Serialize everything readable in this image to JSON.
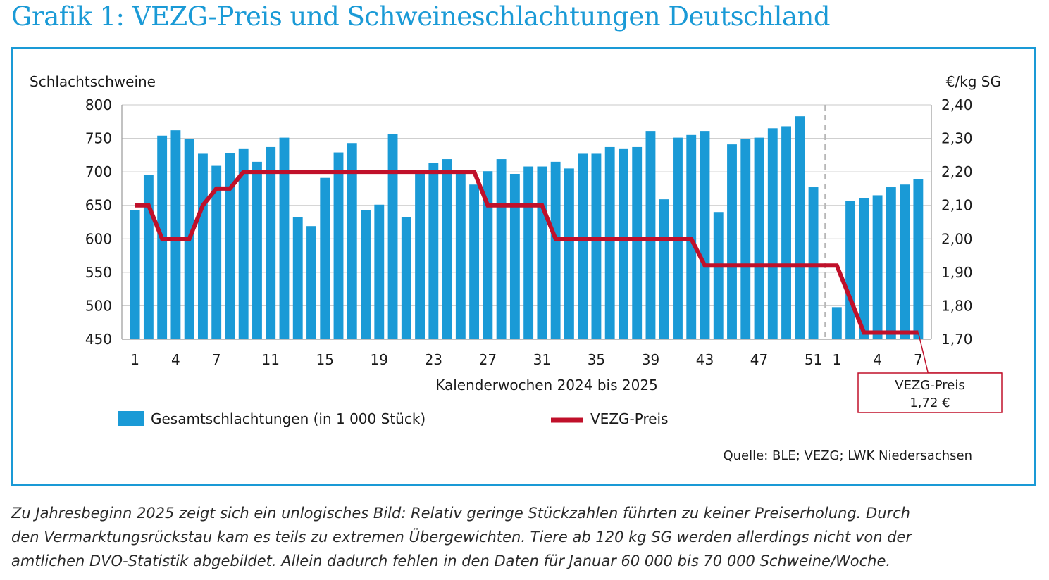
{
  "title": "Grafik 1: VEZG-Preis und Schweineschlachtungen Deutschland",
  "caption": [
    "Zu Jahresbeginn 2025 zeigt sich ein unlogisches Bild: Relativ geringe Stückzahlen führten zu keiner Preiserholung. Durch",
    "den Vermarktungsrückstau kam es teils zu extremen Übergewichten. Tiere ab 120 kg SG werden allerdings nicht von der",
    "amtlichen DVO-Statistik abgebildet. Allein dadurch fehlen in den Daten für Januar 60 000 bis 70 000 Schweine/Woche."
  ],
  "source": "Quelle: BLE; VEZG; LWK Niedersachsen",
  "colors": {
    "bars": "#1a9ad6",
    "line": "#c0102a",
    "title": "#1a9ad6",
    "frame": "#1a9ad6",
    "grid": "#c8c8c8",
    "annotation_border": "#c0102a"
  },
  "chart_data": {
    "type": "bar+line",
    "xlabel": "Kalenderwochen 2024 bis 2025",
    "ylabel_left": "Schlachtschweine",
    "ylabel_right": "€/kg SG",
    "ylim_left": [
      450,
      800
    ],
    "ylim_right": [
      1.7,
      2.4
    ],
    "yticks_left": [
      "800",
      "750",
      "700",
      "650",
      "600",
      "550",
      "500",
      "450"
    ],
    "yticks_right": [
      "2,40",
      "2,30",
      "2,20",
      "2,10",
      "2,00",
      "1,90",
      "1,80",
      "1,70"
    ],
    "categories": [
      "2024-KW1",
      "2024-KW2",
      "2024-KW3",
      "2024-KW4",
      "2024-KW5",
      "2024-KW6",
      "2024-KW7",
      "2024-KW8",
      "2024-KW9",
      "2024-KW10",
      "2024-KW11",
      "2024-KW12",
      "2024-KW13",
      "2024-KW14",
      "2024-KW15",
      "2024-KW16",
      "2024-KW17",
      "2024-KW18",
      "2024-KW19",
      "2024-KW20",
      "2024-KW21",
      "2024-KW22",
      "2024-KW23",
      "2024-KW24",
      "2024-KW25",
      "2024-KW26",
      "2024-KW27",
      "2024-KW28",
      "2024-KW29",
      "2024-KW30",
      "2024-KW31",
      "2024-KW32",
      "2024-KW33",
      "2024-KW34",
      "2024-KW35",
      "2024-KW36",
      "2024-KW37",
      "2024-KW38",
      "2024-KW39",
      "2024-KW40",
      "2024-KW41",
      "2024-KW42",
      "2024-KW43",
      "2024-KW44",
      "2024-KW45",
      "2024-KW46",
      "2024-KW47",
      "2024-KW48",
      "2024-KW49",
      "2024-KW50",
      "2024-KW51",
      "2025-KW1",
      "2025-KW2",
      "2025-KW3",
      "2025-KW4",
      "2025-KW5",
      "2025-KW6",
      "2025-KW7"
    ],
    "x_tick_labels": [
      {
        "index": 0,
        "label": "1"
      },
      {
        "index": 3,
        "label": "4"
      },
      {
        "index": 6,
        "label": "7"
      },
      {
        "index": 10,
        "label": "11"
      },
      {
        "index": 14,
        "label": "15"
      },
      {
        "index": 18,
        "label": "19"
      },
      {
        "index": 22,
        "label": "23"
      },
      {
        "index": 26,
        "label": "27"
      },
      {
        "index": 30,
        "label": "31"
      },
      {
        "index": 34,
        "label": "35"
      },
      {
        "index": 38,
        "label": "39"
      },
      {
        "index": 42,
        "label": "43"
      },
      {
        "index": 46,
        "label": "47"
      },
      {
        "index": 50,
        "label": "51"
      },
      {
        "index": 51,
        "label": "1"
      },
      {
        "index": 54,
        "label": "4"
      },
      {
        "index": 57,
        "label": "7"
      }
    ],
    "year_break_after_index": 50,
    "series": [
      {
        "name": "Gesamtschlachtungen (in 1 000 Stück)",
        "kind": "bar",
        "axis": "left",
        "values": [
          643,
          695,
          754,
          762,
          749,
          727,
          709,
          728,
          735,
          715,
          737,
          751,
          632,
          619,
          691,
          729,
          743,
          643,
          651,
          756,
          632,
          697,
          713,
          719,
          697,
          681,
          701,
          719,
          697,
          708,
          708,
          715,
          705,
          727,
          727,
          737,
          735,
          737,
          761,
          659,
          751,
          755,
          761,
          640,
          741,
          749,
          751,
          765,
          768,
          783,
          677,
          498,
          657,
          661,
          665,
          677,
          681,
          689
        ]
      },
      {
        "name": "VEZG-Preis",
        "kind": "line",
        "axis": "right",
        "values": [
          2.1,
          2.1,
          2.0,
          2.0,
          2.0,
          2.1,
          2.15,
          2.15,
          2.2,
          2.2,
          2.2,
          2.2,
          2.2,
          2.2,
          2.2,
          2.2,
          2.2,
          2.2,
          2.2,
          2.2,
          2.2,
          2.2,
          2.2,
          2.2,
          2.2,
          2.2,
          2.1,
          2.1,
          2.1,
          2.1,
          2.1,
          2.0,
          2.0,
          2.0,
          2.0,
          2.0,
          2.0,
          2.0,
          2.0,
          2.0,
          2.0,
          2.0,
          1.92,
          1.92,
          1.92,
          1.92,
          1.92,
          1.92,
          1.92,
          1.92,
          1.92,
          1.92,
          1.82,
          1.72,
          1.72,
          1.72,
          1.72,
          1.72
        ]
      }
    ],
    "legend": {
      "placement": "bottom",
      "bar_label": "Gesamtschlachtungen (in 1 000 Stück)",
      "line_label": "VEZG-Preis"
    },
    "annotation": {
      "line1": "VEZG-Preis",
      "line2": "1,72 €",
      "target_index": 57
    }
  }
}
